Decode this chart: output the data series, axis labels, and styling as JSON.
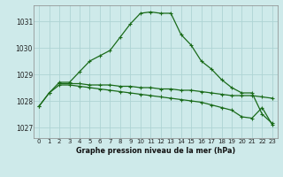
{
  "title": "Graphe pression niveau de la mer (hPa)",
  "background_color": "#ceeaea",
  "grid_color": "#aed4d4",
  "line_color": "#1a6b1a",
  "xlim": [
    -0.5,
    23.5
  ],
  "ylim": [
    1026.6,
    1031.6
  ],
  "yticks": [
    1027,
    1028,
    1029,
    1030,
    1031
  ],
  "xticks": [
    0,
    1,
    2,
    3,
    4,
    5,
    6,
    7,
    8,
    9,
    10,
    11,
    12,
    13,
    14,
    15,
    16,
    17,
    18,
    19,
    20,
    21,
    22,
    23
  ],
  "series1_x": [
    0,
    1,
    2,
    3,
    4,
    5,
    6,
    7,
    8,
    9,
    10,
    11,
    12,
    13,
    14,
    15,
    16,
    17,
    18,
    19,
    20,
    21,
    22,
    23
  ],
  "series1_y": [
    1027.8,
    1028.3,
    1028.7,
    1028.7,
    1029.1,
    1029.5,
    1029.7,
    1029.9,
    1030.4,
    1030.9,
    1031.3,
    1031.35,
    1031.3,
    1031.3,
    1030.5,
    1030.1,
    1029.5,
    1029.2,
    1028.8,
    1028.5,
    1028.3,
    1028.3,
    1027.5,
    1027.15
  ],
  "series2_x": [
    2,
    3,
    4,
    5,
    6,
    7,
    8,
    9,
    10,
    11,
    12,
    13,
    14,
    15,
    16,
    17,
    18,
    19,
    20,
    21,
    22,
    23
  ],
  "series2_y": [
    1028.65,
    1028.65,
    1028.65,
    1028.6,
    1028.6,
    1028.6,
    1028.55,
    1028.55,
    1028.5,
    1028.5,
    1028.45,
    1028.45,
    1028.4,
    1028.4,
    1028.35,
    1028.3,
    1028.25,
    1028.2,
    1028.2,
    1028.2,
    1028.15,
    1028.1
  ],
  "series3_x": [
    0,
    1,
    2,
    3,
    4,
    5,
    6,
    7,
    8,
    9,
    10,
    11,
    12,
    13,
    14,
    15,
    16,
    17,
    18,
    19,
    20,
    21,
    22,
    23
  ],
  "series3_y": [
    1027.8,
    1028.3,
    1028.6,
    1028.6,
    1028.55,
    1028.5,
    1028.45,
    1028.4,
    1028.35,
    1028.3,
    1028.25,
    1028.2,
    1028.15,
    1028.1,
    1028.05,
    1028.0,
    1027.95,
    1027.85,
    1027.75,
    1027.65,
    1027.4,
    1027.35,
    1027.75,
    1027.1
  ]
}
